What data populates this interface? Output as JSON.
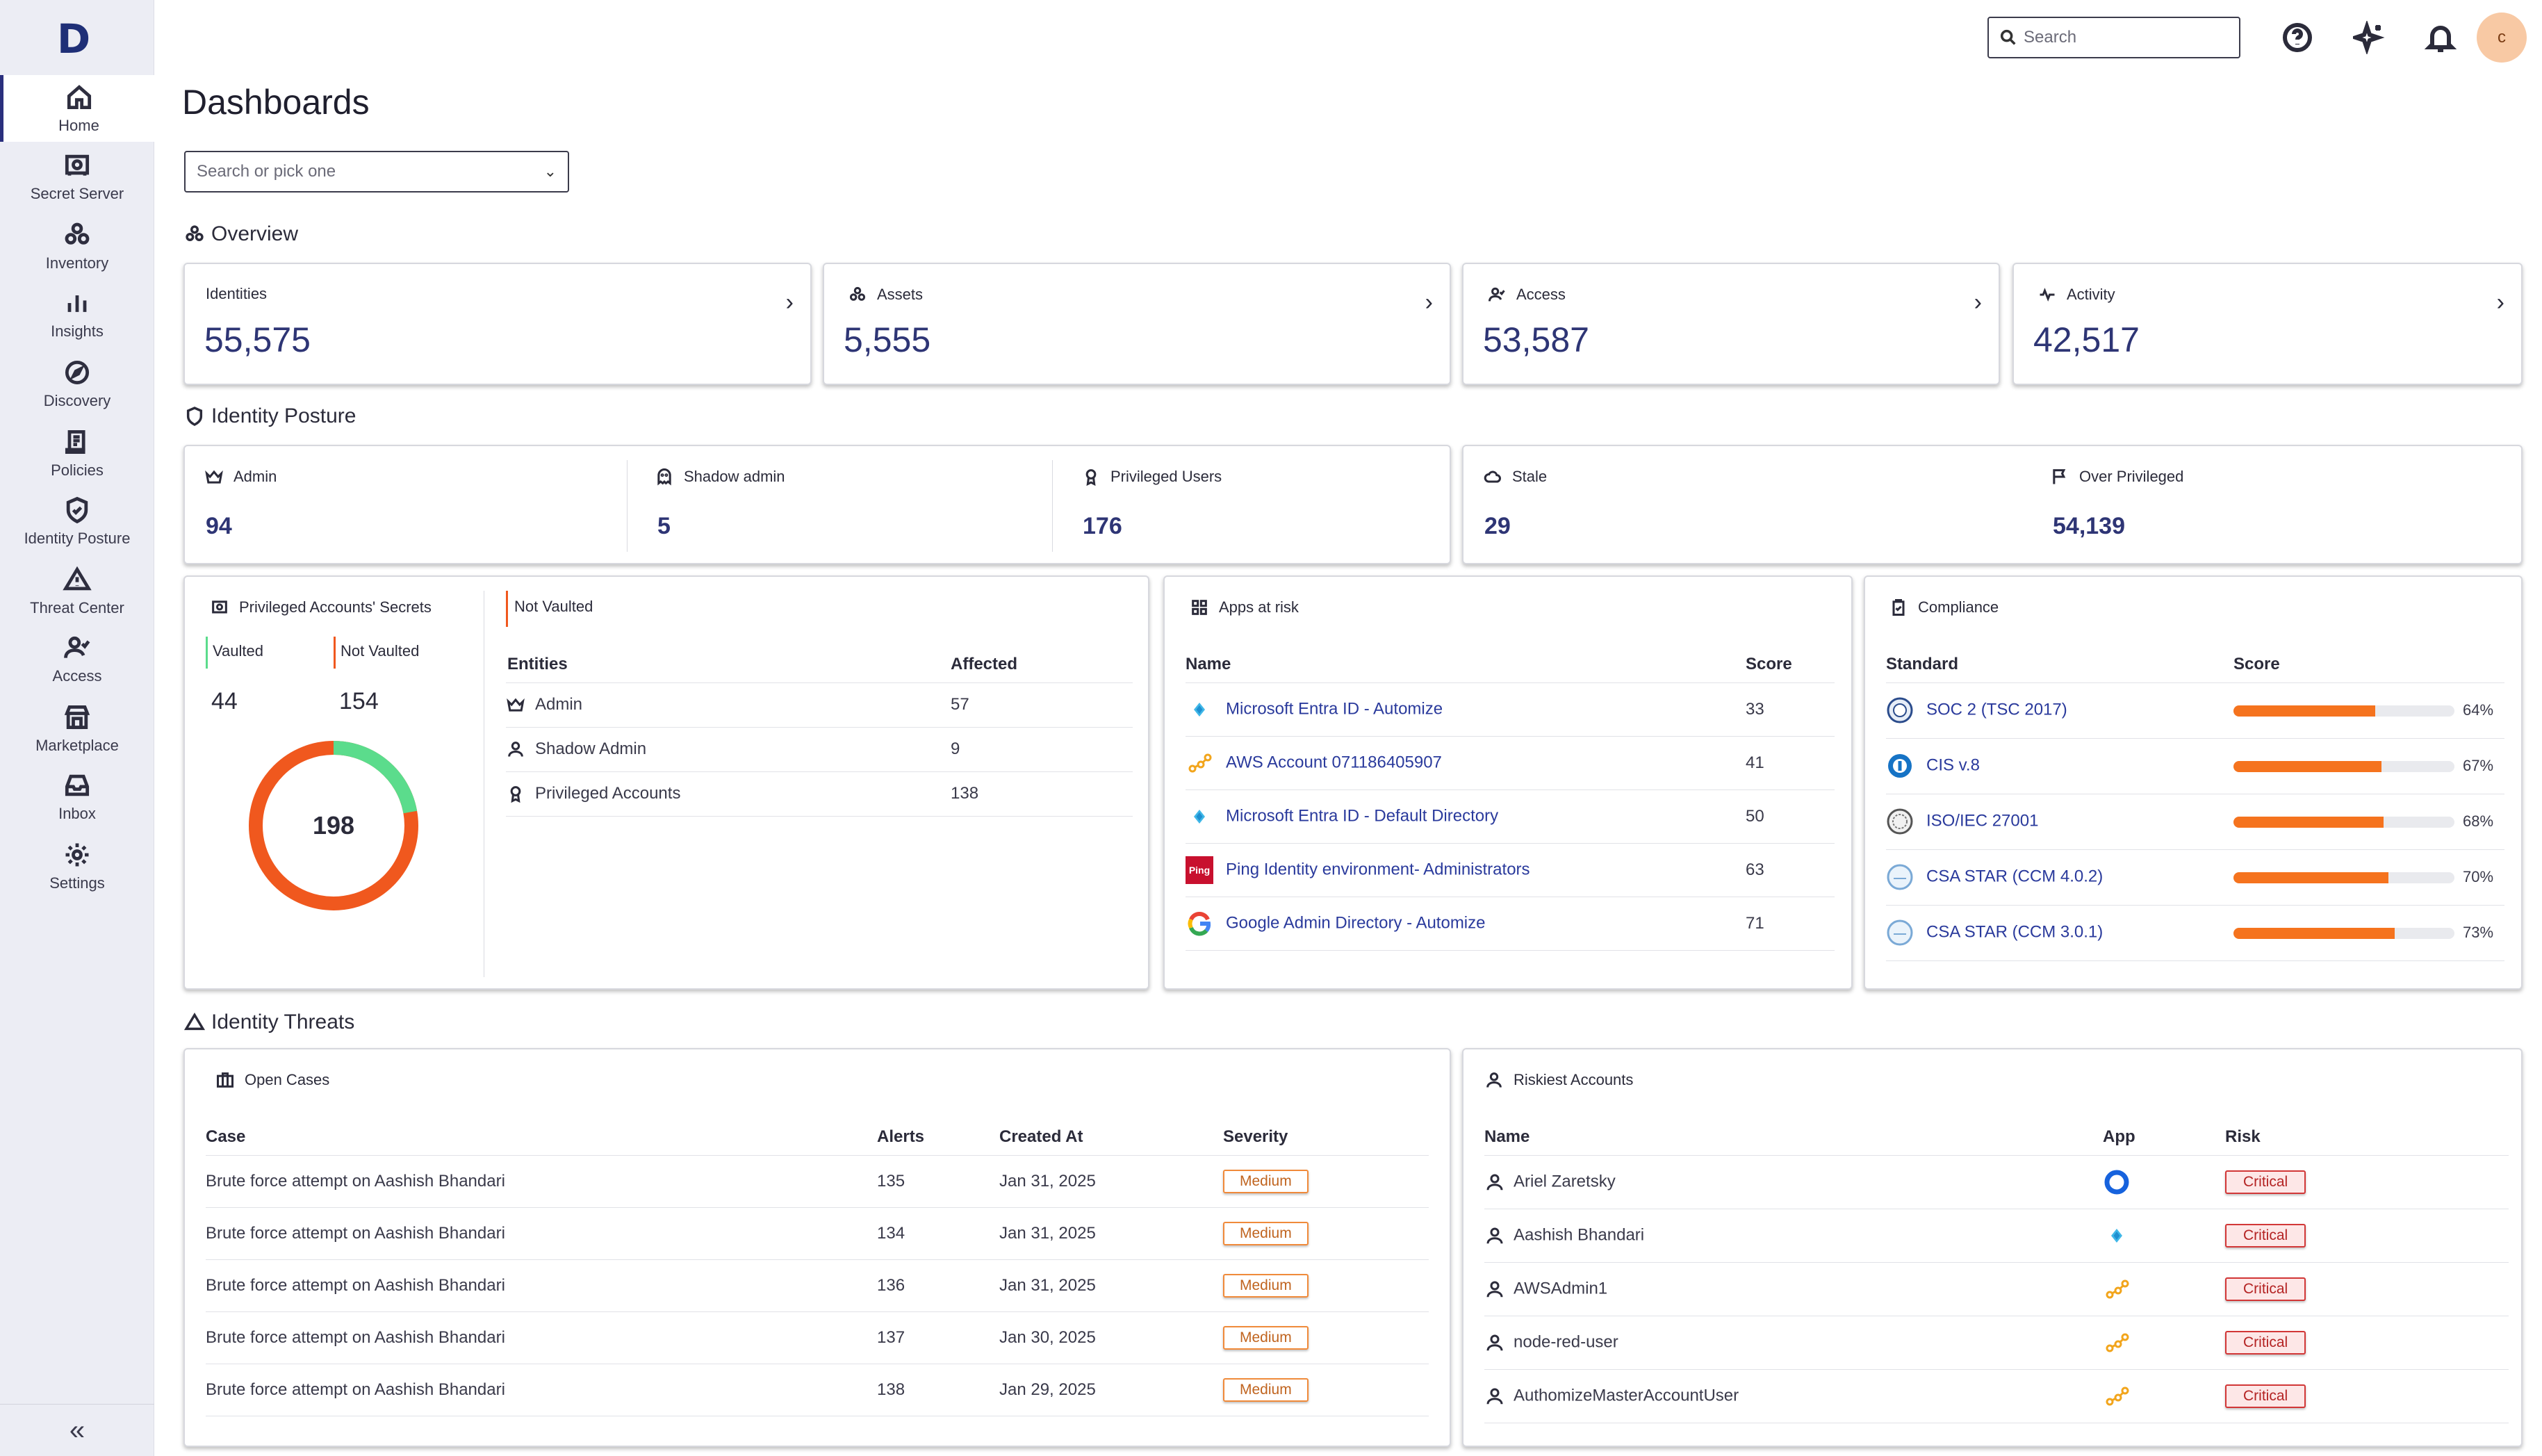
{
  "nav": {
    "logo": "D",
    "items": [
      {
        "label": "Home"
      },
      {
        "label": "Secret Server"
      },
      {
        "label": "Inventory"
      },
      {
        "label": "Insights"
      },
      {
        "label": "Discovery"
      },
      {
        "label": "Policies"
      },
      {
        "label": "Identity Posture"
      },
      {
        "label": "Threat Center"
      },
      {
        "label": "Access"
      },
      {
        "label": "Marketplace"
      },
      {
        "label": "Inbox"
      },
      {
        "label": "Settings"
      }
    ],
    "collapse": "«"
  },
  "topbar": {
    "search_placeholder": "Search",
    "avatar_initial": "c"
  },
  "page": {
    "title": "Dashboards",
    "picker_placeholder": "Search or pick one"
  },
  "overview": {
    "title": "Overview",
    "cards": [
      {
        "label": "Identities",
        "value": "55,575"
      },
      {
        "label": "Assets",
        "value": "5,555"
      },
      {
        "label": "Access",
        "value": "53,587"
      },
      {
        "label": "Activity",
        "value": "42,517"
      }
    ]
  },
  "posture": {
    "title": "Identity Posture",
    "items": [
      {
        "label": "Admin",
        "value": "94"
      },
      {
        "label": "Shadow admin",
        "value": "5"
      },
      {
        "label": "Privileged Users",
        "value": "176"
      },
      {
        "label": "Stale",
        "value": "29"
      },
      {
        "label": "Over Privileged",
        "value": "54,139"
      }
    ]
  },
  "secrets": {
    "title": "Privileged Accounts' Secrets",
    "vaulted_label": "Vaulted",
    "vaulted_value": "44",
    "not_vaulted_label": "Not Vaulted",
    "not_vaulted_value": "154",
    "total": "198",
    "donut_vaulted_fraction": 0.222,
    "detail_title": "Not Vaulted",
    "col_entities": "Entities",
    "col_affected": "Affected",
    "rows": [
      {
        "entity": "Admin",
        "affected": "57"
      },
      {
        "entity": "Shadow Admin",
        "affected": "9"
      },
      {
        "entity": "Privileged Accounts",
        "affected": "138"
      }
    ],
    "colors": {
      "vaulted": "#5bdc8c",
      "not_vaulted": "#f0581e"
    }
  },
  "apps": {
    "title": "Apps at risk",
    "col_name": "Name",
    "col_score": "Score",
    "rows": [
      {
        "name": "Microsoft Entra ID - Automize",
        "score": "33",
        "icon": "entra-icon"
      },
      {
        "name": "AWS Account 071186405907",
        "score": "41",
        "icon": "aws-icon"
      },
      {
        "name": "Microsoft Entra ID - Default Directory",
        "score": "50",
        "icon": "entra-icon"
      },
      {
        "name": "Ping Identity environment- Administrators",
        "score": "63",
        "icon": "ping-icon",
        "icon_text": "Ping"
      },
      {
        "name": "Google Admin Directory - Automize",
        "score": "71",
        "icon": "google-icon"
      }
    ]
  },
  "compliance": {
    "title": "Compliance",
    "col_standard": "Standard",
    "col_score": "Score",
    "rows": [
      {
        "name": "SOC 2 (TSC 2017)",
        "score": "64%",
        "pct": 64
      },
      {
        "name": "CIS v.8",
        "score": "67%",
        "pct": 67
      },
      {
        "name": "ISO/IEC 27001",
        "score": "68%",
        "pct": 68
      },
      {
        "name": "CSA STAR (CCM 4.0.2)",
        "score": "70%",
        "pct": 70
      },
      {
        "name": "CSA STAR (CCM 3.0.1)",
        "score": "73%",
        "pct": 73
      }
    ]
  },
  "threats": {
    "title": "Identity Threats",
    "cases": {
      "title": "Open Cases",
      "col_case": "Case",
      "col_alerts": "Alerts",
      "col_created": "Created At",
      "col_severity": "Severity",
      "rows": [
        {
          "case": "Brute force attempt on Aashish Bhandari",
          "alerts": "135",
          "created": "Jan 31, 2025",
          "severity": "Medium"
        },
        {
          "case": "Brute force attempt on Aashish Bhandari",
          "alerts": "134",
          "created": "Jan 31, 2025",
          "severity": "Medium"
        },
        {
          "case": "Brute force attempt on Aashish Bhandari",
          "alerts": "136",
          "created": "Jan 31, 2025",
          "severity": "Medium"
        },
        {
          "case": "Brute force attempt on Aashish Bhandari",
          "alerts": "137",
          "created": "Jan 30, 2025",
          "severity": "Medium"
        },
        {
          "case": "Brute force attempt on Aashish Bhandari",
          "alerts": "138",
          "created": "Jan 29, 2025",
          "severity": "Medium"
        }
      ]
    },
    "riskiest": {
      "title": "Riskiest Accounts",
      "col_name": "Name",
      "col_app": "App",
      "col_risk": "Risk",
      "rows": [
        {
          "name": "Ariel Zaretsky",
          "app": "okta-icon",
          "risk": "Critical"
        },
        {
          "name": "Aashish Bhandari",
          "app": "entra-icon",
          "risk": "Critical"
        },
        {
          "name": "AWSAdmin1",
          "app": "aws-icon",
          "risk": "Critical"
        },
        {
          "name": "node-red-user",
          "app": "aws-icon",
          "risk": "Critical"
        },
        {
          "name": "AuthomizeMasterAccountUser",
          "app": "aws-icon",
          "risk": "Critical"
        }
      ]
    }
  }
}
